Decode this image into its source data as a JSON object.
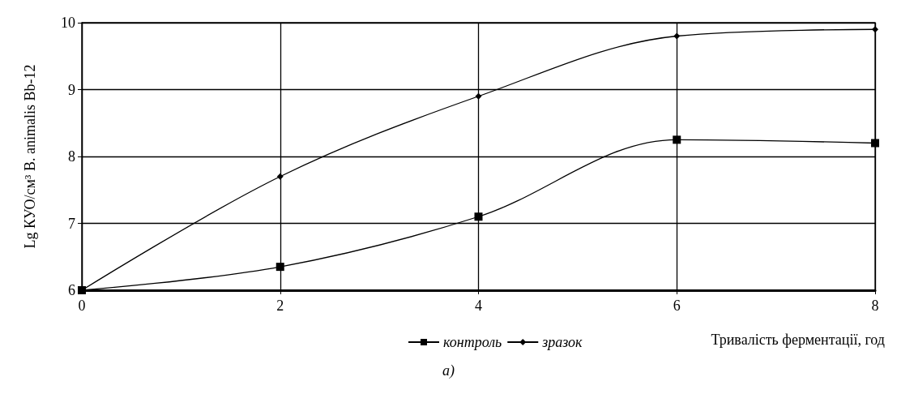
{
  "chart_data": {
    "type": "line",
    "xlabel": "Тривалість ферментації, год",
    "ylabel": "Lg КУО/см³ B. animalis Bb-12",
    "annotations": [
      "а)"
    ],
    "x": [
      0,
      2,
      4,
      6,
      8
    ],
    "xlim": [
      0,
      8
    ],
    "xticks": [
      0,
      2,
      4,
      6,
      8
    ],
    "ylim": [
      6,
      10
    ],
    "yticks": [
      6,
      7,
      8,
      9,
      10
    ],
    "grid": true,
    "legend": "bottom",
    "line_style": "solid",
    "series": [
      {
        "name": "контроль",
        "color": "#000000",
        "marker": "square",
        "values": [
          6,
          6.35,
          7.1,
          8.25,
          8.2
        ]
      },
      {
        "name": "зразок",
        "color": "#000000",
        "marker": "diamond",
        "values": [
          6,
          7.7,
          8.9,
          9.8,
          9.9
        ]
      }
    ]
  }
}
